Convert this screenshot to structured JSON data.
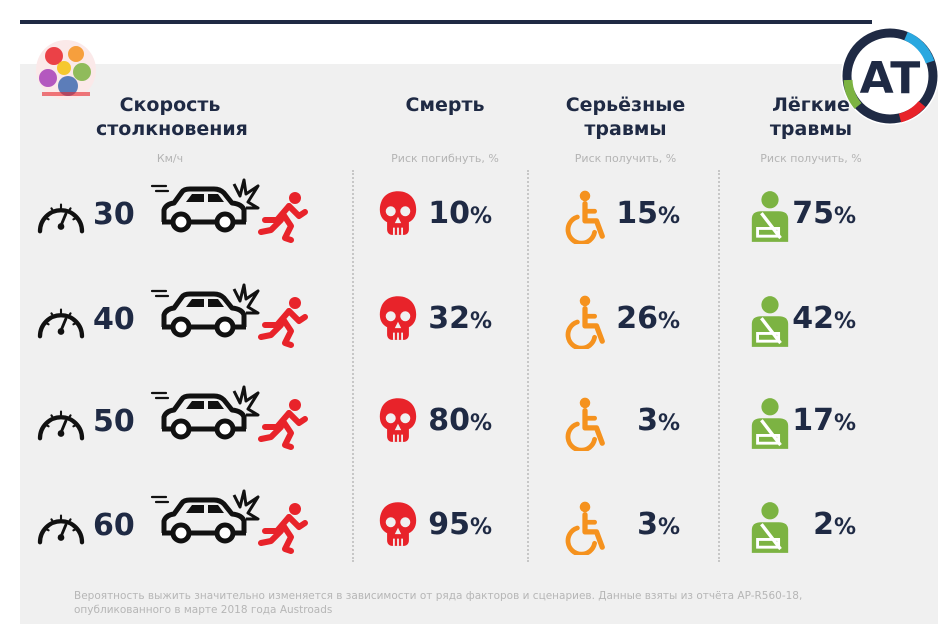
{
  "header": {
    "speed_title": "Скорость столкновения",
    "speed_unit": "Км/ч",
    "death_title": "Смерть",
    "death_sub": "Риск погибнуть, %",
    "serious_title": "Серьёзные травмы",
    "serious_sub": "Риск получить, %",
    "light_title": "Лёгкие травмы",
    "light_sub": "Риск получить, %"
  },
  "rows": [
    {
      "speed": "30",
      "death": "10",
      "serious": "15",
      "light": "75"
    },
    {
      "speed": "40",
      "death": "32",
      "serious": "26",
      "light": "42"
    },
    {
      "speed": "50",
      "death": "80",
      "serious": "3",
      "light": "17"
    },
    {
      "speed": "60",
      "death": "95",
      "serious": "3",
      "light": "2"
    }
  ],
  "percent_sign": "%",
  "footnote": "Вероятность выжить значительно изменяется в зависимости от ряда факторов и сценариев. Данные взяты из отчёта AP-R560-18, опубликованного в марте 2018 года Austroads",
  "logo_right_text": "AT",
  "icons": {
    "speed": "speedometer-icon",
    "car": "car-crash-icon",
    "pedestrian": "falling-pedestrian-icon",
    "death": "skull-icon",
    "serious": "wheelchair-icon",
    "light": "arm-sling-icon"
  },
  "colors": {
    "navy": "#1f2a44",
    "red": "#e8232a",
    "orange": "#f5921e",
    "green": "#7cb342",
    "panel": "#f0f0f0"
  }
}
